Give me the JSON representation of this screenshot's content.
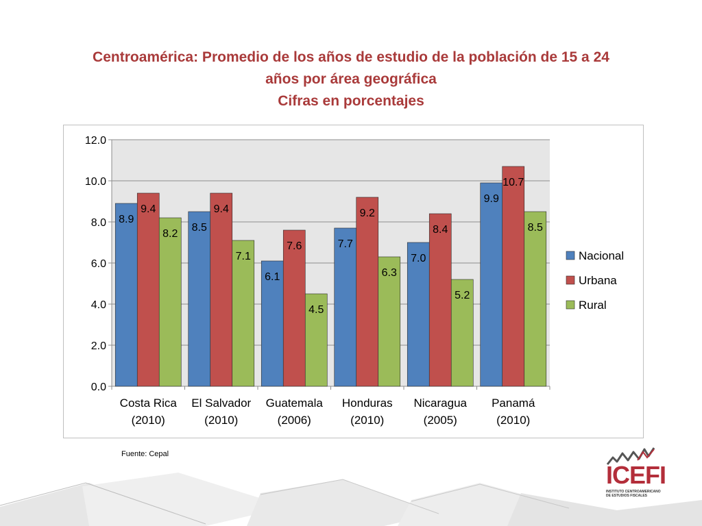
{
  "slide": {
    "title_line1": "Centroamérica: Promedio de los años de estudio de la población de 15 a 24",
    "title_line2": "años por área geográfica",
    "title_line3": "Cifras en porcentajes",
    "source": "Fuente: Cepal"
  },
  "logo": {
    "name": "ICEFI",
    "subtitle_line1": "INSTITUTO CENTROAMERICANO",
    "subtitle_line2": "DE ESTUDIOS FISCALES"
  },
  "chart_data": {
    "type": "bar",
    "categories": [
      [
        "Costa Rica",
        "(2010)"
      ],
      [
        "El Salvador",
        "(2010)"
      ],
      [
        "Guatemala",
        "(2006)"
      ],
      [
        "Honduras",
        "(2010)"
      ],
      [
        "Nicaragua",
        "(2005)"
      ],
      [
        "Panamá",
        "(2010)"
      ]
    ],
    "series": [
      {
        "name": "Nacional",
        "color": "#4F81BD",
        "values": [
          8.9,
          8.5,
          6.1,
          7.7,
          7.0,
          9.9
        ]
      },
      {
        "name": "Urbana",
        "color": "#C0504D",
        "values": [
          9.4,
          9.4,
          7.6,
          9.2,
          8.4,
          10.7
        ]
      },
      {
        "name": "Rural",
        "color": "#9BBB59",
        "values": [
          8.2,
          7.1,
          4.5,
          6.3,
          5.2,
          8.5
        ]
      }
    ],
    "ylim": [
      0,
      12
    ],
    "yticks": [
      "0.0",
      "2.0",
      "4.0",
      "6.0",
      "8.0",
      "10.0",
      "12.0"
    ],
    "grid": true,
    "legend": "right",
    "xlabel": "",
    "ylabel": ""
  }
}
